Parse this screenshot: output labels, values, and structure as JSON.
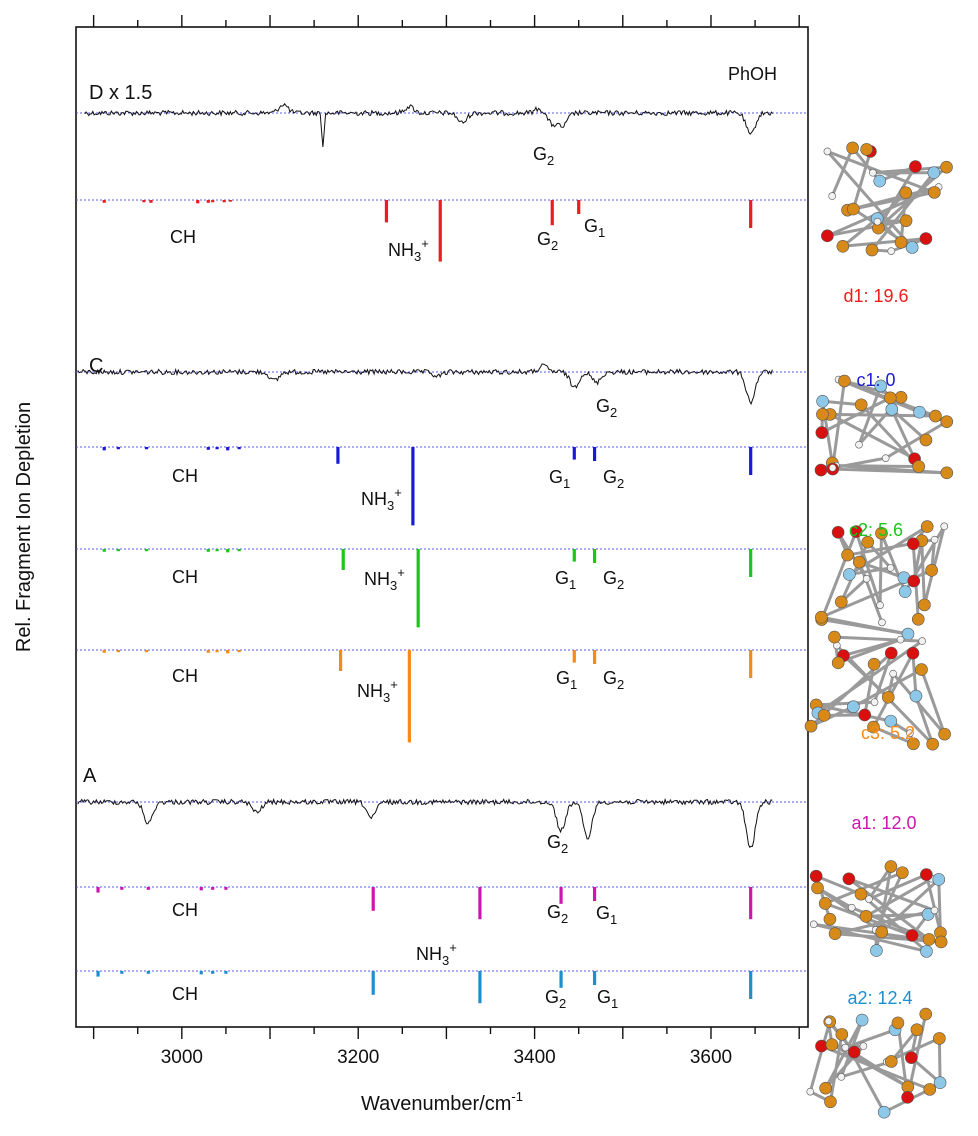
{
  "chart_data": {
    "type": "line",
    "xlabel": "Wavenumber/cm",
    "xlabel_superscript": "-1",
    "ylabel": "Rel. Fragment Ion Depletion",
    "xlim": [
      2880,
      3710
    ],
    "x_ticks": [
      3000,
      3200,
      3400,
      3600
    ],
    "x_tick_labels": [
      "3000",
      "3200",
      "3400",
      "3600"
    ],
    "annotations": {
      "phoh": "PhOH",
      "d_label": "D x 1.5",
      "c_label": "C",
      "a_label": "A",
      "ch": "CH",
      "nh3": "NH",
      "nh3_sub": "3",
      "nh3_sup": "+",
      "g": "G",
      "g1_sub": "1",
      "g2_sub": "2"
    },
    "experimental_spectra": [
      {
        "name": "D",
        "dips": [
          [
            3115,
            -0.4
          ],
          [
            3160,
            1.6
          ],
          [
            3258,
            -0.3
          ],
          [
            3318,
            0.45
          ],
          [
            3405,
            -0.2
          ],
          [
            3420,
            0.5
          ],
          [
            3432,
            0.6
          ],
          [
            3645,
            1.0
          ]
        ]
      },
      {
        "name": "C",
        "dips": [
          [
            3105,
            0.3
          ],
          [
            3290,
            0.15
          ],
          [
            3410,
            -0.2
          ],
          [
            3445,
            0.5
          ],
          [
            3470,
            0.35
          ],
          [
            3645,
            1.0
          ]
        ]
      },
      {
        "name": "A",
        "dips": [
          [
            2962,
            0.6
          ],
          [
            3085,
            0.3
          ],
          [
            3215,
            0.45
          ],
          [
            3430,
            0.8
          ],
          [
            3460,
            1.0
          ],
          [
            3645,
            1.3
          ]
        ]
      }
    ],
    "series": [
      {
        "name": "d1: 19.6",
        "color": "#ee1c1c",
        "sticks": [
          [
            2912,
            0.1
          ],
          [
            2957,
            0.08
          ],
          [
            2965,
            0.1
          ],
          [
            3018,
            0.12
          ],
          [
            3030,
            0.1
          ],
          [
            3035,
            0.08
          ],
          [
            3048,
            0.08
          ],
          [
            3055,
            0.06
          ],
          [
            3232,
            0.8
          ],
          [
            3293,
            2.2
          ],
          [
            3420,
            0.9
          ],
          [
            3450,
            0.5
          ],
          [
            3645,
            1.0
          ]
        ]
      },
      {
        "name": "c1: 0",
        "color": "#1a1ad6",
        "sticks": [
          [
            2912,
            0.12
          ],
          [
            2928,
            0.08
          ],
          [
            2960,
            0.08
          ],
          [
            3030,
            0.1
          ],
          [
            3040,
            0.08
          ],
          [
            3052,
            0.12
          ],
          [
            3065,
            0.08
          ],
          [
            3177,
            0.6
          ],
          [
            3262,
            2.8
          ],
          [
            3445,
            0.45
          ],
          [
            3468,
            0.5
          ],
          [
            3645,
            1.0
          ]
        ]
      },
      {
        "name": "c2: 5.6",
        "color": "#19c619",
        "sticks": [
          [
            2912,
            0.1
          ],
          [
            2928,
            0.08
          ],
          [
            2960,
            0.08
          ],
          [
            3030,
            0.1
          ],
          [
            3040,
            0.08
          ],
          [
            3052,
            0.12
          ],
          [
            3065,
            0.08
          ],
          [
            3183,
            0.75
          ],
          [
            3268,
            2.8
          ],
          [
            3445,
            0.45
          ],
          [
            3468,
            0.5
          ],
          [
            3645,
            1.0
          ]
        ]
      },
      {
        "name": "c3: 5.2",
        "color": "#f58a1a",
        "sticks": [
          [
            2912,
            0.1
          ],
          [
            2928,
            0.08
          ],
          [
            2960,
            0.08
          ],
          [
            3030,
            0.1
          ],
          [
            3040,
            0.08
          ],
          [
            3052,
            0.12
          ],
          [
            3065,
            0.08
          ],
          [
            3180,
            0.75
          ],
          [
            3258,
            3.3
          ],
          [
            3445,
            0.45
          ],
          [
            3468,
            0.5
          ],
          [
            3645,
            1.0
          ]
        ]
      },
      {
        "name": "a1: 12.0",
        "color": "#cc16b1",
        "sticks": [
          [
            2905,
            0.2
          ],
          [
            2932,
            0.1
          ],
          [
            2962,
            0.1
          ],
          [
            3022,
            0.12
          ],
          [
            3035,
            0.1
          ],
          [
            3050,
            0.1
          ],
          [
            3217,
            0.85
          ],
          [
            3338,
            1.15
          ],
          [
            3430,
            0.6
          ],
          [
            3468,
            0.5
          ],
          [
            3645,
            1.15
          ]
        ]
      },
      {
        "name": "a2: 12.4",
        "color": "#1c8fd0",
        "sticks": [
          [
            2905,
            0.2
          ],
          [
            2932,
            0.1
          ],
          [
            2962,
            0.1
          ],
          [
            3022,
            0.12
          ],
          [
            3035,
            0.1
          ],
          [
            3050,
            0.1
          ],
          [
            3217,
            0.85
          ],
          [
            3338,
            1.15
          ],
          [
            3430,
            0.6
          ],
          [
            3468,
            0.5
          ],
          [
            3645,
            1.0
          ]
        ]
      }
    ]
  }
}
